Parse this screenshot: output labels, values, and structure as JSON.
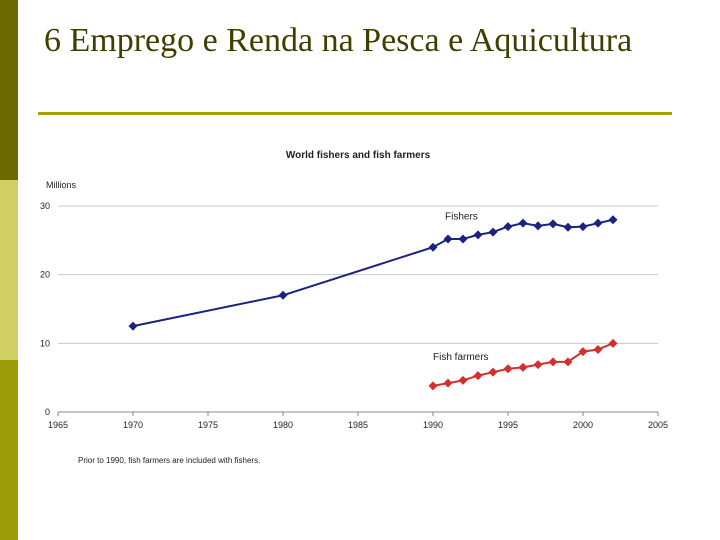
{
  "slide": {
    "title": "6 Emprego e Renda na Pesca e Aquicultura"
  },
  "chart_data": {
    "type": "line",
    "title": "World fishers and fish farmers",
    "ylabel": "Millions",
    "xlabel": "",
    "xlim": [
      1965,
      2005
    ],
    "ylim": [
      0,
      30
    ],
    "xticks": [
      1965,
      1970,
      1975,
      1980,
      1985,
      1990,
      1995,
      2000,
      2005
    ],
    "yticks": [
      0,
      10,
      20,
      30
    ],
    "grid": true,
    "note": "Prior to 1990, fish farmers are included with fishers.",
    "series": [
      {
        "name": "Fishers",
        "color": "#1a237e",
        "points": [
          [
            1970,
            12.5
          ],
          [
            1980,
            17.0
          ],
          [
            1990,
            24.0
          ],
          [
            1991,
            25.2
          ],
          [
            1992,
            25.2
          ],
          [
            1993,
            25.8
          ],
          [
            1994,
            26.2
          ],
          [
            1995,
            27.0
          ],
          [
            1996,
            27.5
          ],
          [
            1997,
            27.1
          ],
          [
            1998,
            27.4
          ],
          [
            1999,
            26.9
          ],
          [
            2000,
            27.0
          ],
          [
            2001,
            27.5
          ],
          [
            2002,
            28.0
          ]
        ]
      },
      {
        "name": "Fish farmers",
        "color": "#d32f2f",
        "points": [
          [
            1990,
            3.8
          ],
          [
            1991,
            4.2
          ],
          [
            1992,
            4.6
          ],
          [
            1993,
            5.3
          ],
          [
            1994,
            5.8
          ],
          [
            1995,
            6.3
          ],
          [
            1996,
            6.5
          ],
          [
            1997,
            6.9
          ],
          [
            1998,
            7.3
          ],
          [
            1999,
            7.3
          ],
          [
            2000,
            8.8
          ],
          [
            2001,
            9.1
          ],
          [
            2002,
            10.0
          ]
        ]
      }
    ]
  }
}
